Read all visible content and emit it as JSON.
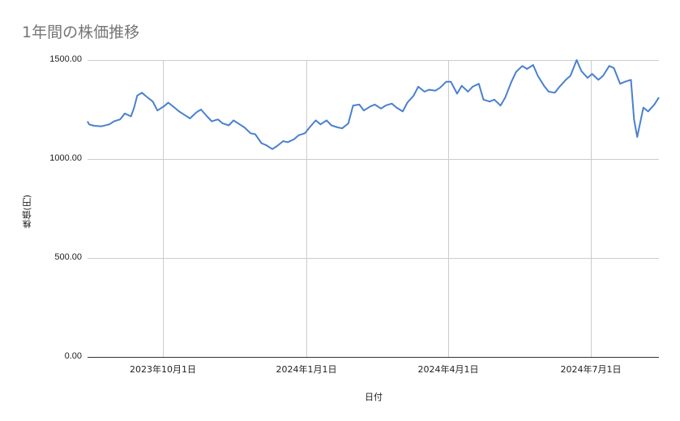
{
  "chart": {
    "title": "1年間の株価推移",
    "y_axis_label": "株価(円)",
    "x_axis_label": "日付",
    "y_ticks": [
      "1500.00",
      "1000.00",
      "500.00",
      "0.00"
    ],
    "x_ticks": [
      "2023年10月1日",
      "2024年1月1日",
      "2024年4月1日",
      "2024年7月1日"
    ],
    "line_color": "#4a80d0"
  },
  "chart_data": {
    "type": "line",
    "title": "1年間の株価推移",
    "xlabel": "日付",
    "ylabel": "株価(円)",
    "ylim": [
      0,
      1500
    ],
    "y_ticks": [
      0,
      500,
      1000,
      1500
    ],
    "x_tick_labels": [
      "2023年10月1日",
      "2024年1月1日",
      "2024年4月1日",
      "2024年7月1日"
    ],
    "grid": true,
    "legend": "none",
    "series": [
      {
        "name": "株価",
        "x": [
          "2023-08-21",
          "2023-08-22",
          "2023-08-25",
          "2023-08-30",
          "2023-09-04",
          "2023-09-07",
          "2023-09-11",
          "2023-09-14",
          "2023-09-18",
          "2023-09-20",
          "2023-09-22",
          "2023-09-25",
          "2023-09-28",
          "2023-10-02",
          "2023-10-05",
          "2023-10-09",
          "2023-10-12",
          "2023-10-16",
          "2023-10-19",
          "2023-10-23",
          "2023-10-26",
          "2023-10-30",
          "2023-11-02",
          "2023-11-06",
          "2023-11-09",
          "2023-11-13",
          "2023-11-16",
          "2023-11-20",
          "2023-11-23",
          "2023-11-27",
          "2023-11-30",
          "2023-12-04",
          "2023-12-07",
          "2023-12-11",
          "2023-12-14",
          "2023-12-18",
          "2023-12-21",
          "2023-12-25",
          "2023-12-28",
          "2024-01-01",
          "2024-01-04",
          "2024-01-08",
          "2024-01-11",
          "2024-01-15",
          "2024-01-18",
          "2024-01-22",
          "2024-01-25",
          "2024-01-29",
          "2024-02-01",
          "2024-02-05",
          "2024-02-08",
          "2024-02-12",
          "2024-02-15",
          "2024-02-19",
          "2024-02-22",
          "2024-02-26",
          "2024-02-29",
          "2024-03-04",
          "2024-03-07",
          "2024-03-11",
          "2024-03-14",
          "2024-03-18",
          "2024-03-21",
          "2024-03-25",
          "2024-03-28",
          "2024-04-01",
          "2024-04-04",
          "2024-04-08",
          "2024-04-11",
          "2024-04-15",
          "2024-04-18",
          "2024-04-22",
          "2024-04-25",
          "2024-04-29",
          "2024-05-02",
          "2024-05-06",
          "2024-05-09",
          "2024-05-13",
          "2024-05-16",
          "2024-05-20",
          "2024-05-23",
          "2024-05-27",
          "2024-05-30",
          "2024-06-03",
          "2024-06-06",
          "2024-06-10",
          "2024-06-13",
          "2024-06-17",
          "2024-06-20",
          "2024-06-24",
          "2024-06-27",
          "2024-07-01",
          "2024-07-04",
          "2024-07-08",
          "2024-07-11",
          "2024-07-15",
          "2024-07-18",
          "2024-07-22",
          "2024-07-25",
          "2024-07-29",
          "2024-08-01",
          "2024-08-05",
          "2024-08-07",
          "2024-08-09",
          "2024-08-13",
          "2024-08-16",
          "2024-08-20",
          "2024-08-23"
        ],
        "values": [
          1190,
          1175,
          1168,
          1165,
          1175,
          1190,
          1200,
          1230,
          1215,
          1260,
          1320,
          1335,
          1315,
          1290,
          1245,
          1265,
          1285,
          1260,
          1240,
          1220,
          1205,
          1235,
          1250,
          1215,
          1190,
          1200,
          1180,
          1170,
          1195,
          1175,
          1160,
          1130,
          1125,
          1080,
          1070,
          1050,
          1065,
          1090,
          1085,
          1100,
          1120,
          1130,
          1160,
          1195,
          1175,
          1195,
          1170,
          1160,
          1155,
          1180,
          1270,
          1275,
          1245,
          1265,
          1275,
          1255,
          1270,
          1280,
          1260,
          1240,
          1285,
          1320,
          1365,
          1340,
          1350,
          1345,
          1360,
          1390,
          1390,
          1330,
          1370,
          1340,
          1365,
          1380,
          1300,
          1290,
          1300,
          1270,
          1310,
          1390,
          1440,
          1470,
          1455,
          1475,
          1420,
          1370,
          1340,
          1335,
          1365,
          1400,
          1420,
          1500,
          1445,
          1410,
          1430,
          1400,
          1420,
          1470,
          1460,
          1380,
          1390,
          1400,
          1200,
          1111,
          1260,
          1240,
          1275,
          1311
        ]
      }
    ]
  }
}
